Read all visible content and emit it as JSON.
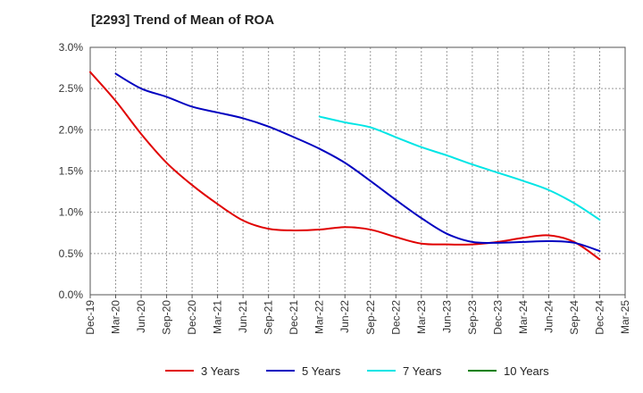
{
  "chart_data": {
    "type": "line",
    "title": "[2293]  Trend of Mean of ROA",
    "xlabel": "",
    "ylabel": "",
    "ylim": [
      0,
      3.0
    ],
    "y_ticks": [
      "0.0%",
      "0.5%",
      "1.0%",
      "1.5%",
      "2.0%",
      "2.5%",
      "3.0%"
    ],
    "y_tick_values": [
      0,
      0.5,
      1.0,
      1.5,
      2.0,
      2.5,
      3.0
    ],
    "categories": [
      "Dec-19",
      "Mar-20",
      "Jun-20",
      "Sep-20",
      "Dec-20",
      "Mar-21",
      "Jun-21",
      "Sep-21",
      "Dec-21",
      "Mar-22",
      "Jun-22",
      "Sep-22",
      "Dec-22",
      "Mar-23",
      "Jun-23",
      "Sep-23",
      "Dec-23",
      "Mar-24",
      "Jun-24",
      "Sep-24",
      "Dec-24",
      "Mar-25"
    ],
    "grid": true,
    "legend_position": "bottom",
    "series": [
      {
        "name": "3 Years",
        "color": "#e00000",
        "values": [
          2.7,
          2.35,
          1.95,
          1.6,
          1.33,
          1.1,
          0.9,
          0.8,
          0.78,
          0.79,
          0.82,
          0.79,
          0.7,
          0.62,
          0.61,
          0.61,
          0.64,
          0.69,
          0.72,
          0.64,
          0.43,
          null
        ]
      },
      {
        "name": "5 Years",
        "color": "#0000c0",
        "values": [
          null,
          2.68,
          2.5,
          2.4,
          2.28,
          2.21,
          2.14,
          2.04,
          1.91,
          1.77,
          1.6,
          1.38,
          1.15,
          0.93,
          0.74,
          0.64,
          0.63,
          0.64,
          0.65,
          0.63,
          0.53,
          null
        ]
      },
      {
        "name": "7 Years",
        "color": "#00e5e5",
        "values": [
          null,
          null,
          null,
          null,
          null,
          null,
          null,
          null,
          null,
          2.16,
          2.09,
          2.03,
          1.91,
          1.79,
          1.69,
          1.58,
          1.48,
          1.38,
          1.27,
          1.11,
          0.91,
          null
        ]
      },
      {
        "name": "10 Years",
        "color": "#008000",
        "values": [
          null,
          null,
          null,
          null,
          null,
          null,
          null,
          null,
          null,
          null,
          null,
          null,
          null,
          null,
          null,
          null,
          null,
          null,
          null,
          null,
          null,
          null
        ]
      }
    ]
  }
}
